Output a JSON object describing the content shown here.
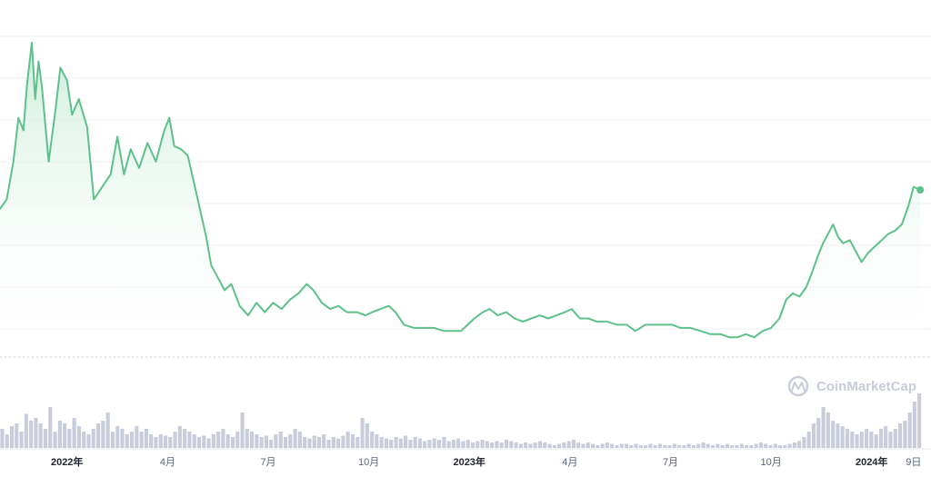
{
  "watermark": {
    "text": "CoinMarketCap"
  },
  "colors": {
    "line": "#5ec08b",
    "area_top": "#c9ecd7",
    "volume": "#c9ccda",
    "grid": "#f1f2f5",
    "baseline": "#c8ccd4"
  },
  "chart_data": {
    "type": "line",
    "title": "",
    "xlabel": "",
    "ylabel": "",
    "grid": true,
    "x_range": [
      0,
      27.5
    ],
    "y_range": [
      0,
      100
    ],
    "tick_labels": [
      {
        "x": 2,
        "label": "2022年",
        "major": true
      },
      {
        "x": 5,
        "label": "4月",
        "major": false
      },
      {
        "x": 8,
        "label": "7月",
        "major": false
      },
      {
        "x": 11,
        "label": "10月",
        "major": false
      },
      {
        "x": 14,
        "label": "2023年",
        "major": true
      },
      {
        "x": 17,
        "label": "4月",
        "major": false
      },
      {
        "x": 20,
        "label": "7月",
        "major": false
      },
      {
        "x": 23,
        "label": "10月",
        "major": false
      },
      {
        "x": 26,
        "label": "2024年",
        "major": true
      },
      {
        "x": 27.25,
        "label": "9日",
        "major": false
      }
    ],
    "series": [
      {
        "values": [
          [
            0,
            45
          ],
          [
            0.2,
            48
          ],
          [
            0.4,
            60
          ],
          [
            0.55,
            74
          ],
          [
            0.7,
            70
          ],
          [
            0.8,
            84
          ],
          [
            0.95,
            98
          ],
          [
            1.05,
            80
          ],
          [
            1.15,
            92
          ],
          [
            1.25,
            84
          ],
          [
            1.45,
            60
          ],
          [
            1.65,
            76
          ],
          [
            1.8,
            90
          ],
          [
            2.0,
            86
          ],
          [
            2.15,
            75
          ],
          [
            2.35,
            80
          ],
          [
            2.6,
            71
          ],
          [
            2.8,
            48
          ],
          [
            3.05,
            52
          ],
          [
            3.3,
            56
          ],
          [
            3.5,
            68
          ],
          [
            3.7,
            56
          ],
          [
            3.9,
            64
          ],
          [
            4.15,
            58
          ],
          [
            4.4,
            66
          ],
          [
            4.65,
            60
          ],
          [
            4.9,
            70
          ],
          [
            5.05,
            74
          ],
          [
            5.2,
            65
          ],
          [
            5.4,
            64
          ],
          [
            5.6,
            62
          ],
          [
            5.9,
            48
          ],
          [
            6.15,
            36
          ],
          [
            6.3,
            27
          ],
          [
            6.45,
            24
          ],
          [
            6.7,
            19
          ],
          [
            6.9,
            21
          ],
          [
            7.15,
            14
          ],
          [
            7.4,
            11
          ],
          [
            7.65,
            15
          ],
          [
            7.9,
            12
          ],
          [
            8.15,
            15
          ],
          [
            8.4,
            13
          ],
          [
            8.65,
            16
          ],
          [
            8.9,
            18
          ],
          [
            9.15,
            21
          ],
          [
            9.35,
            19
          ],
          [
            9.6,
            15
          ],
          [
            9.85,
            13
          ],
          [
            10.1,
            14
          ],
          [
            10.35,
            12
          ],
          [
            10.65,
            12
          ],
          [
            10.9,
            11
          ],
          [
            11.1,
            12
          ],
          [
            11.35,
            13
          ],
          [
            11.6,
            14
          ],
          [
            11.8,
            12
          ],
          [
            12.05,
            8
          ],
          [
            12.35,
            7
          ],
          [
            12.65,
            7
          ],
          [
            12.95,
            7
          ],
          [
            13.25,
            6
          ],
          [
            13.5,
            6
          ],
          [
            13.75,
            6
          ],
          [
            13.95,
            8
          ],
          [
            14.15,
            10
          ],
          [
            14.4,
            12
          ],
          [
            14.6,
            13
          ],
          [
            14.85,
            11
          ],
          [
            15.1,
            12
          ],
          [
            15.35,
            10
          ],
          [
            15.6,
            9
          ],
          [
            15.85,
            10
          ],
          [
            16.1,
            11
          ],
          [
            16.35,
            10
          ],
          [
            16.6,
            11
          ],
          [
            16.85,
            12
          ],
          [
            17.05,
            13
          ],
          [
            17.3,
            10
          ],
          [
            17.55,
            10
          ],
          [
            17.8,
            9
          ],
          [
            18.1,
            9
          ],
          [
            18.4,
            8
          ],
          [
            18.7,
            8
          ],
          [
            18.95,
            6
          ],
          [
            19.25,
            8
          ],
          [
            19.5,
            8
          ],
          [
            19.8,
            8
          ],
          [
            20.05,
            8
          ],
          [
            20.3,
            7
          ],
          [
            20.6,
            7
          ],
          [
            20.9,
            6
          ],
          [
            21.2,
            5
          ],
          [
            21.5,
            5
          ],
          [
            21.75,
            4
          ],
          [
            22.0,
            4
          ],
          [
            22.25,
            5
          ],
          [
            22.5,
            4
          ],
          [
            22.75,
            6
          ],
          [
            23.0,
            7
          ],
          [
            23.25,
            10
          ],
          [
            23.45,
            16
          ],
          [
            23.65,
            18
          ],
          [
            23.85,
            17
          ],
          [
            24.05,
            20
          ],
          [
            24.2,
            24
          ],
          [
            24.4,
            30
          ],
          [
            24.55,
            34
          ],
          [
            24.7,
            37
          ],
          [
            24.85,
            40
          ],
          [
            25.0,
            36
          ],
          [
            25.15,
            34
          ],
          [
            25.35,
            35
          ],
          [
            25.55,
            31
          ],
          [
            25.7,
            28
          ],
          [
            25.9,
            31
          ],
          [
            26.1,
            33
          ],
          [
            26.3,
            35
          ],
          [
            26.5,
            37
          ],
          [
            26.7,
            38
          ],
          [
            26.9,
            40
          ],
          [
            27.1,
            46
          ],
          [
            27.25,
            52
          ],
          [
            27.45,
            51
          ]
        ]
      }
    ],
    "volume": [
      14,
      10,
      16,
      18,
      12,
      25,
      20,
      22,
      18,
      14,
      30,
      12,
      20,
      18,
      14,
      22,
      16,
      12,
      10,
      14,
      18,
      20,
      26,
      12,
      16,
      14,
      10,
      12,
      16,
      12,
      14,
      10,
      8,
      10,
      9,
      8,
      12,
      16,
      14,
      12,
      10,
      8,
      9,
      7,
      10,
      12,
      14,
      10,
      8,
      12,
      26,
      14,
      12,
      10,
      8,
      9,
      6,
      10,
      12,
      8,
      10,
      14,
      12,
      8,
      7,
      9,
      8,
      10,
      6,
      8,
      7,
      9,
      12,
      10,
      8,
      22,
      18,
      12,
      10,
      8,
      7,
      6,
      8,
      7,
      9,
      6,
      8,
      7,
      5,
      6,
      7,
      6,
      8,
      5,
      6,
      7,
      5,
      6,
      4,
      5,
      6,
      5,
      4,
      5,
      4,
      6,
      5,
      4,
      3,
      4,
      3,
      4,
      5,
      4,
      3,
      2,
      3,
      4,
      5,
      6,
      4,
      3,
      4,
      3,
      2,
      3,
      4,
      3,
      2,
      3,
      3,
      2,
      3,
      2,
      2,
      3,
      2,
      3,
      2,
      2,
      3,
      2,
      2,
      3,
      2,
      3,
      4,
      3,
      2,
      3,
      2,
      3,
      2,
      2,
      3,
      2,
      2,
      3,
      4,
      3,
      2,
      3,
      2,
      2,
      3,
      4,
      5,
      8,
      12,
      18,
      22,
      30,
      26,
      20,
      18,
      16,
      14,
      12,
      10,
      12,
      14,
      12,
      10,
      14,
      16,
      12,
      14,
      18,
      20,
      26,
      34,
      40
    ]
  }
}
